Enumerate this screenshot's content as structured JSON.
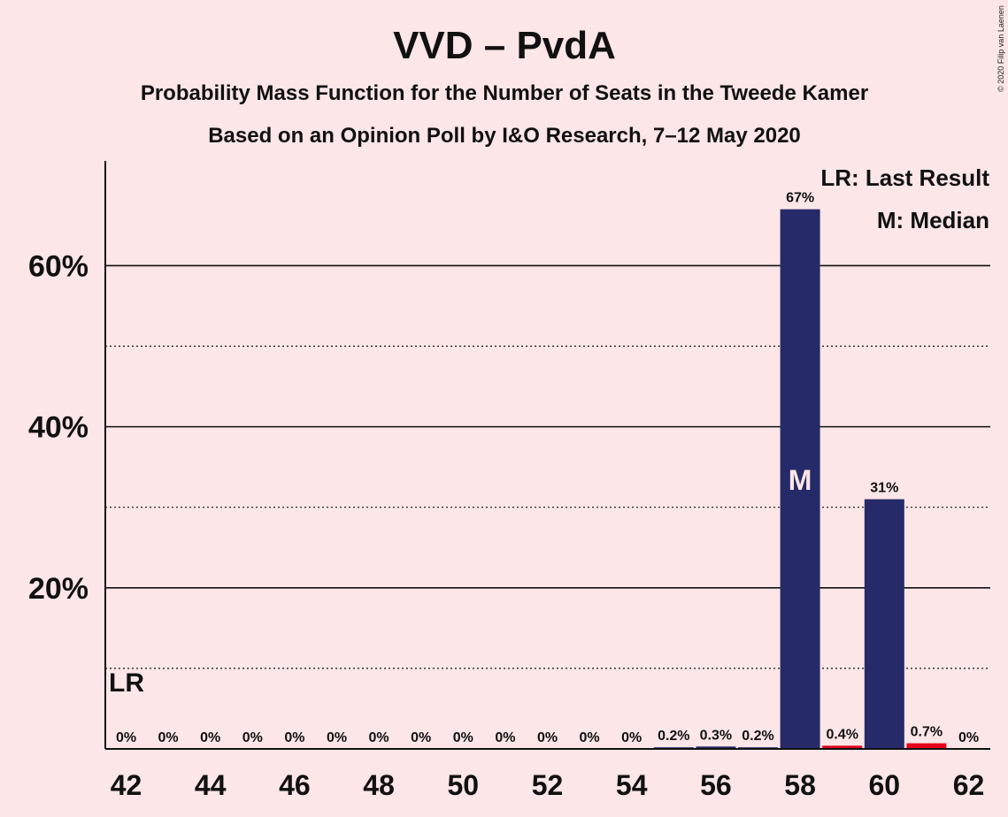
{
  "chart_data": {
    "type": "bar",
    "title": "VVD – PvdA",
    "subtitle_1": "Probability Mass Function for the Number of Seats in the Tweede Kamer",
    "subtitle_2": "Based on an Opinion Poll by I&O Research, 7–12 May 2020",
    "copyright": "© 2020 Filip van Laenen",
    "x": [
      42,
      43,
      44,
      45,
      46,
      47,
      48,
      49,
      50,
      51,
      52,
      53,
      54,
      55,
      56,
      57,
      58,
      59,
      60,
      61,
      62
    ],
    "values": [
      0,
      0,
      0,
      0,
      0,
      0,
      0,
      0,
      0,
      0,
      0,
      0,
      0,
      0.2,
      0.3,
      0.2,
      67,
      0.4,
      31,
      0.7,
      0
    ],
    "data_labels": [
      "0%",
      "0%",
      "0%",
      "0%",
      "0%",
      "0%",
      "0%",
      "0%",
      "0%",
      "0%",
      "0%",
      "0%",
      "0%",
      "0.2%",
      "0.3%",
      "0.2%",
      "67%",
      "0.4%",
      "31%",
      "0.7%",
      "0%"
    ],
    "bar_colors": [
      "#262a68",
      "#262a68",
      "#262a68",
      "#262a68",
      "#262a68",
      "#262a68",
      "#262a68",
      "#262a68",
      "#262a68",
      "#262a68",
      "#262a68",
      "#262a68",
      "#262a68",
      "#262a68",
      "#262a68",
      "#262a68",
      "#262a68",
      "#e4001b",
      "#262a68",
      "#e4001b",
      "#262a68"
    ],
    "xticks": [
      42,
      44,
      46,
      48,
      50,
      52,
      54,
      56,
      58,
      60,
      62
    ],
    "yticks": [
      20,
      40,
      60
    ],
    "ytick_labels": [
      "20%",
      "40%",
      "60%"
    ],
    "minor_gridlines": [
      10,
      30,
      50
    ],
    "ylim": [
      0,
      73
    ],
    "median": 58,
    "median_label": "M",
    "last_result": 42,
    "last_result_label": "LR",
    "legend": [
      "LR: Last Result",
      "M: Median"
    ],
    "legend_position": "top-right",
    "colors": {
      "background": "#fce6e7",
      "bar": "#262a68",
      "highlight": "#e4001b",
      "text": "#111111"
    }
  }
}
